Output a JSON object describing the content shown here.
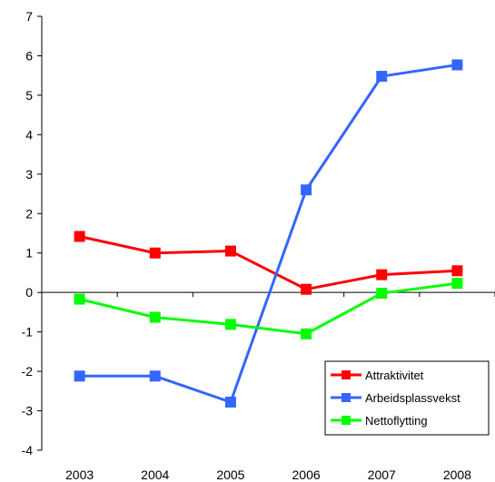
{
  "chart_data": {
    "type": "line",
    "categories": [
      "2003",
      "2004",
      "2005",
      "2006",
      "2007",
      "2008"
    ],
    "ylim": [
      -4,
      7
    ],
    "yticks": [
      -4,
      -3,
      -2,
      -1,
      0,
      1,
      2,
      3,
      4,
      5,
      6,
      7
    ],
    "ytick_labels": [
      "-4",
      "-3",
      "-2",
      "-1",
      "0",
      "1",
      "2",
      "3",
      "4",
      "5",
      "6",
      "7"
    ],
    "grid": false,
    "legend_position": "bottom-right",
    "series": [
      {
        "name": "Attraktivitet",
        "color": "#ff0000",
        "values": [
          1.42,
          1.0,
          1.05,
          0.08,
          0.45,
          0.55
        ]
      },
      {
        "name": "Arbeidsplassvekst",
        "color": "#3366ff",
        "values": [
          -2.12,
          -2.12,
          -2.78,
          2.6,
          5.48,
          5.77
        ]
      },
      {
        "name": "Nettoflytting",
        "color": "#00ff00",
        "values": [
          -0.17,
          -0.63,
          -0.81,
          -1.05,
          -0.02,
          0.23
        ]
      }
    ]
  }
}
